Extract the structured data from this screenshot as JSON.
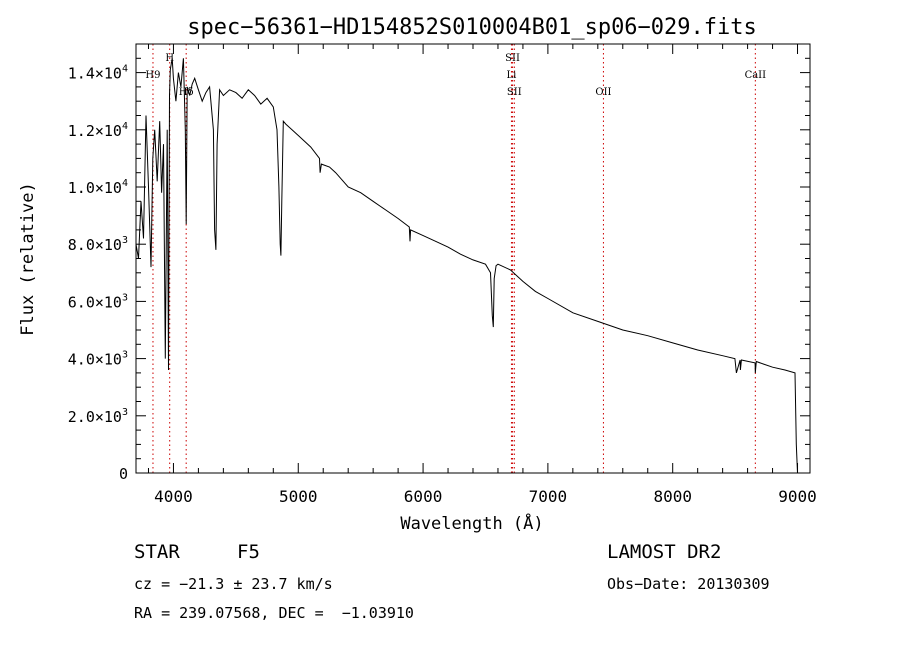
{
  "chart_data": {
    "type": "line",
    "title": "spec−56361−HD154852S010004B01_sp06−029.fits",
    "xlabel": "Wavelength (Å)",
    "ylabel": "Flux (relative)",
    "xlim": [
      3700,
      9100
    ],
    "ylim": [
      0,
      15000
    ],
    "x_ticks": [
      4000,
      5000,
      6000,
      7000,
      8000,
      9000
    ],
    "y_ticks": [
      0,
      2000,
      4000,
      6000,
      8000,
      10000,
      12000,
      14000
    ],
    "y_tick_labels": [
      {
        "mantissa": "0",
        "exp": ""
      },
      {
        "mantissa": "2.0×10",
        "exp": "3"
      },
      {
        "mantissa": "4.0×10",
        "exp": "3"
      },
      {
        "mantissa": "6.0×10",
        "exp": "3"
      },
      {
        "mantissa": "8.0×10",
        "exp": "3"
      },
      {
        "mantissa": "1.0×10",
        "exp": "4"
      },
      {
        "mantissa": "1.2×10",
        "exp": "4"
      },
      {
        "mantissa": "1.4×10",
        "exp": "4"
      }
    ],
    "grid": false,
    "line_color": "#000000",
    "marker_color": "#cc0000",
    "series": [
      {
        "x": [
          3700,
          3720,
          3740,
          3760,
          3780,
          3800,
          3820,
          3835,
          3850,
          3870,
          3890,
          3905,
          3920,
          3935,
          3950,
          3960,
          3968,
          3975,
          3990,
          4000,
          4020,
          4040,
          4060,
          4080,
          4095,
          4102,
          4110,
          4130,
          4150,
          4170,
          4200,
          4230,
          4260,
          4290,
          4320,
          4330,
          4340,
          4350,
          4370,
          4400,
          4450,
          4500,
          4550,
          4600,
          4650,
          4700,
          4750,
          4800,
          4830,
          4845,
          4855,
          4861,
          4868,
          4880,
          4900,
          4950,
          5000,
          5100,
          5170,
          5175,
          5185,
          5250,
          5300,
          5400,
          5500,
          5600,
          5700,
          5800,
          5890,
          5895,
          5900,
          6000,
          6100,
          6200,
          6300,
          6400,
          6500,
          6540,
          6555,
          6563,
          6570,
          6585,
          6600,
          6700,
          6800,
          6900,
          7000,
          7200,
          7400,
          7600,
          7800,
          8000,
          8200,
          8400,
          8498,
          8510,
          8540,
          8542,
          8550,
          8660,
          8662,
          8670,
          8700,
          8800,
          8900,
          8980,
          8990,
          9000
        ],
        "y": [
          8000,
          7500,
          9500,
          8200,
          12500,
          10000,
          7200,
          11000,
          12000,
          10200,
          12300,
          9800,
          11500,
          4000,
          12000,
          3600,
          13200,
          14100,
          14500,
          13800,
          13000,
          14000,
          13500,
          14500,
          12000,
          8700,
          13500,
          13200,
          13600,
          13800,
          13400,
          13000,
          13300,
          13500,
          12000,
          8500,
          7800,
          11500,
          13400,
          13200,
          13400,
          13300,
          13100,
          13400,
          13200,
          12900,
          13100,
          12800,
          12000,
          10000,
          8000,
          7600,
          9500,
          12300,
          12200,
          12000,
          11800,
          11400,
          11000,
          10500,
          10800,
          10700,
          10500,
          10000,
          9800,
          9500,
          9200,
          8900,
          8600,
          8100,
          8500,
          8300,
          8100,
          7900,
          7650,
          7450,
          7300,
          7000,
          5500,
          5100,
          6800,
          7250,
          7300,
          7100,
          6700,
          6350,
          6100,
          5600,
          5300,
          5000,
          4800,
          4550,
          4300,
          4100,
          4000,
          3500,
          3950,
          3600,
          3950,
          3850,
          3500,
          3900,
          3850,
          3700,
          3600,
          3500,
          1000,
          0
        ]
      }
    ],
    "line_markers": [
      {
        "name": "H9",
        "x": 3836,
        "label_row": 1
      },
      {
        "name": "H",
        "x": 3970,
        "label_row": 0
      },
      {
        "name": "Hδ",
        "x": 4102,
        "label_row": 2
      },
      {
        "name": "SII",
        "x": 6717,
        "label_row": 0
      },
      {
        "name": "Li",
        "x": 6708,
        "label_row": 1
      },
      {
        "name": "SII",
        "x": 6731,
        "label_row": 2
      },
      {
        "name": "OII",
        "x": 7445,
        "label_row": 2
      },
      {
        "name": "CaII",
        "x": 8662,
        "label_row": 1
      }
    ]
  },
  "info": {
    "class_label": "STAR",
    "subclass": "F5",
    "survey": "LAMOST DR2",
    "cz": "cz = −21.3 ± 23.7 km/s",
    "obs_date": "Obs−Date: 20130309",
    "coords": "RA = 239.07568, DEC =  −1.03910"
  }
}
